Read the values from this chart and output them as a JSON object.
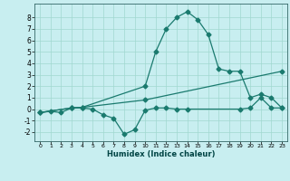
{
  "title": "",
  "xlabel": "Humidex (Indice chaleur)",
  "bg_color": "#c8eef0",
  "line_color": "#1a7a6e",
  "grid_color": "#a0d8d0",
  "xlim": [
    -0.5,
    23.5
  ],
  "ylim": [
    -2.8,
    9.2
  ],
  "yticks": [
    -2,
    -1,
    0,
    1,
    2,
    3,
    4,
    5,
    6,
    7,
    8
  ],
  "xticks": [
    0,
    1,
    2,
    3,
    4,
    5,
    6,
    7,
    8,
    9,
    10,
    11,
    12,
    13,
    14,
    15,
    16,
    17,
    18,
    19,
    20,
    21,
    22,
    23
  ],
  "line1_x": [
    0,
    1,
    2,
    3,
    4,
    10,
    11,
    12,
    13,
    14,
    15,
    16,
    17,
    18,
    19,
    20,
    21,
    22,
    23
  ],
  "line1_y": [
    -0.3,
    -0.2,
    -0.3,
    0.1,
    0.15,
    2.0,
    5.0,
    7.0,
    8.0,
    8.5,
    7.8,
    6.5,
    3.5,
    3.3,
    3.3,
    1.0,
    1.3,
    1.0,
    0.1
  ],
  "line2_x": [
    0,
    3,
    4,
    10,
    23
  ],
  "line2_y": [
    -0.3,
    0.1,
    0.15,
    0.8,
    3.3
  ],
  "line3_x": [
    0,
    3,
    4,
    5,
    6,
    7,
    8,
    9,
    10,
    11,
    12,
    13,
    14,
    19,
    20,
    21,
    22,
    23
  ],
  "line3_y": [
    -0.3,
    0.1,
    0.1,
    0.0,
    -0.5,
    -0.8,
    -2.2,
    -1.8,
    -0.1,
    0.1,
    0.1,
    0.0,
    0.0,
    0.0,
    0.1,
    1.0,
    0.1,
    0.1
  ]
}
